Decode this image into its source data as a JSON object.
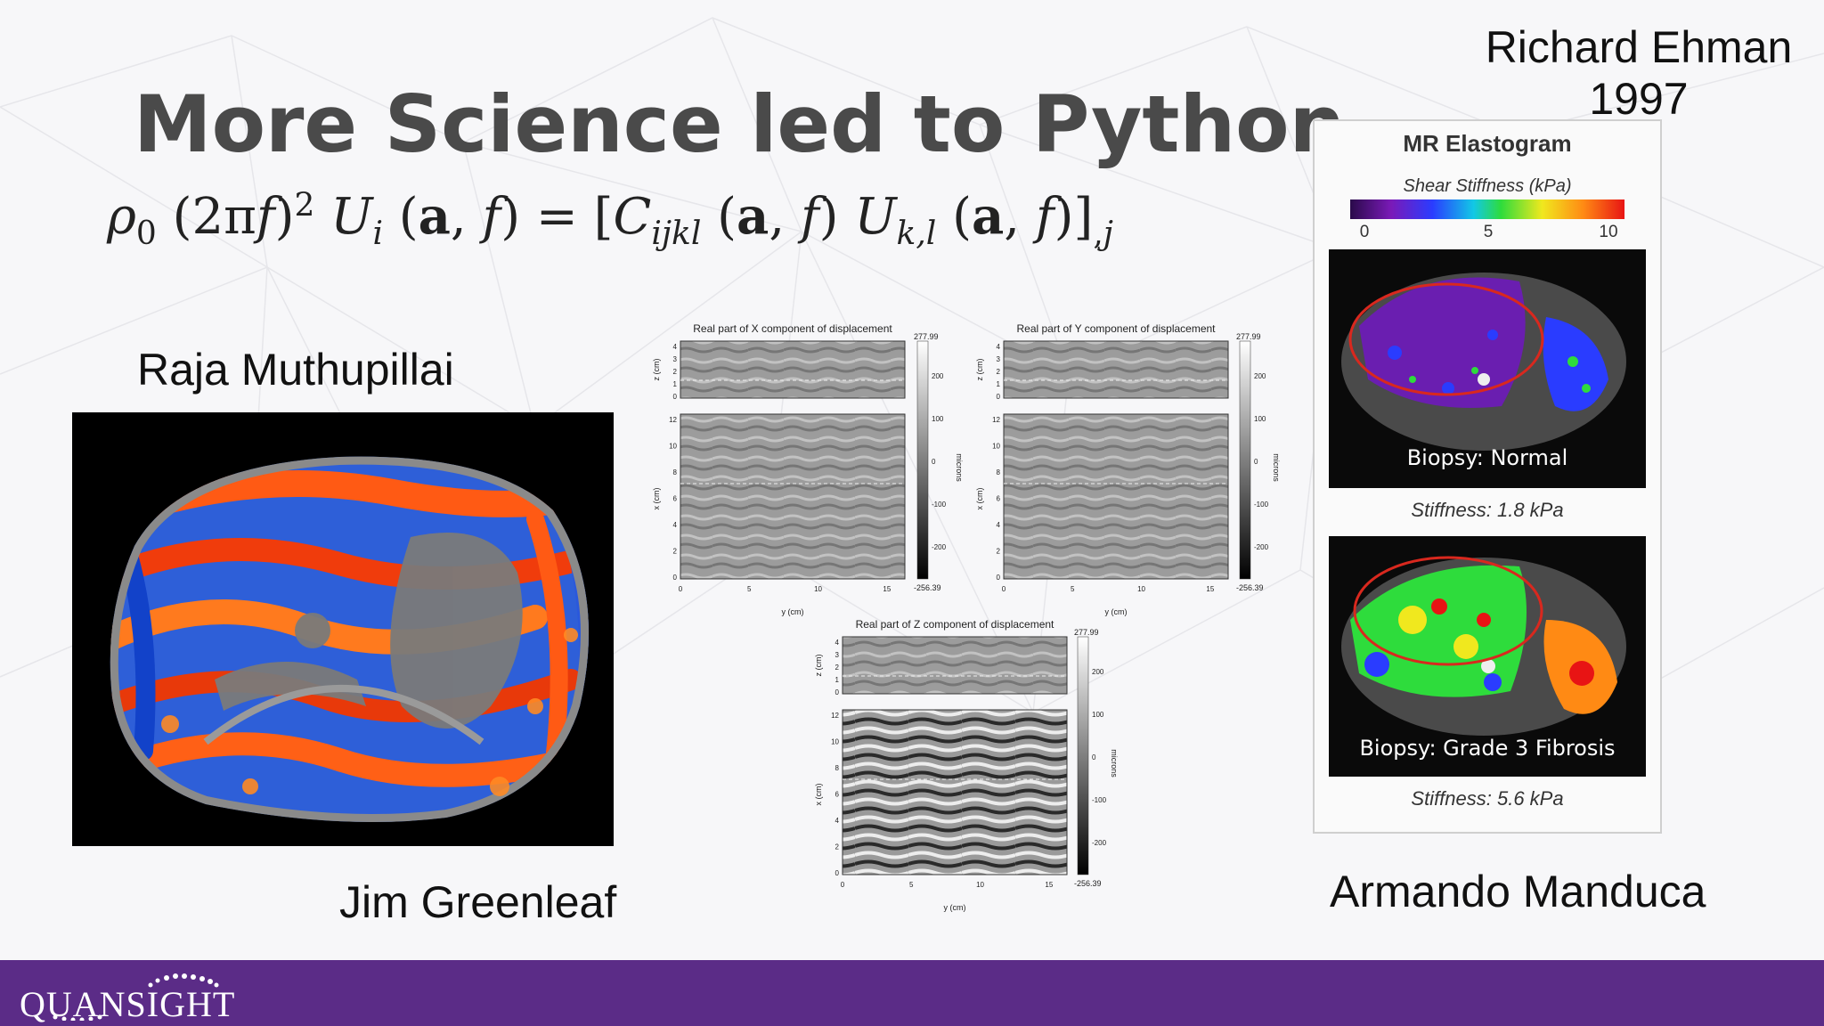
{
  "slide": {
    "title": "More Science led to Python",
    "equation_text": "ρ0 (2πf)^2 Ui(a, f) = [Cijkl(a, f) Uk,l(a, f)],j"
  },
  "people": {
    "raja": "Raja Muthupillai",
    "jim": "Jim Greenleaf",
    "armando": "Armando Manduca",
    "richard_name": "Richard Ehman",
    "richard_year": "1997"
  },
  "simulation": {
    "x_title": "Real part of X component of displacement",
    "y_title": "Real part of Y component of displacement",
    "z_title": "Real part of Z component of displacement",
    "z_axis_label": "z (cm)",
    "x_axis_label": "x (cm)",
    "y_axis_label": "y (cm)",
    "colorbar_unit": "microns",
    "colorbar_max": "277.99",
    "colorbar_min": "-256.39",
    "colorbar_ticks": [
      "200",
      "100",
      "0",
      "-100",
      "-200"
    ],
    "z_ticks": [
      "4",
      "3",
      "2",
      "1",
      "0"
    ],
    "x_ticks": [
      "12",
      "10",
      "8",
      "6",
      "4",
      "2",
      "0"
    ],
    "y_ticks": [
      "0",
      "5",
      "10",
      "15"
    ]
  },
  "elastogram": {
    "title": "MR Elastogram",
    "scale_label": "Shear Stiffness (kPa)",
    "scale_ticks": [
      "0",
      "5",
      "10"
    ],
    "panel1_label": "Biopsy: Normal",
    "panel1_stiffness": "Stiffness: 1.8 kPa",
    "panel2_label": "Biopsy: Grade 3 Fibrosis",
    "panel2_stiffness": "Stiffness: 5.6 kPa"
  },
  "footer": {
    "logo_text": "QUANSIGHT"
  },
  "colors": {
    "title": "#4a4a4a",
    "footer": "#5b2c87",
    "ellipse": "#d9281e"
  }
}
